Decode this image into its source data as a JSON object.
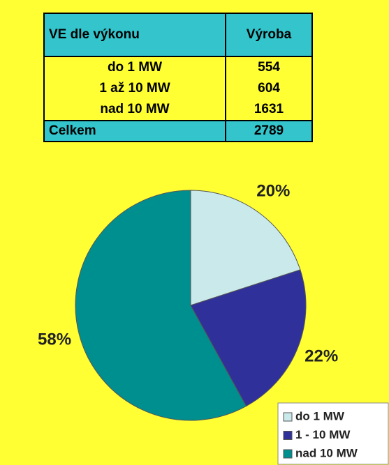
{
  "table": {
    "header": [
      "VE dle výkonu",
      "Výroba"
    ],
    "rows": [
      [
        "do 1 MW",
        554
      ],
      [
        "1 až 10 MW",
        604
      ],
      [
        "nad 10 MW",
        1631
      ]
    ],
    "footer": [
      "Celkem",
      2789
    ]
  },
  "chart_data": {
    "type": "pie",
    "categories": [
      "do 1 MW",
      "1 - 10 MW",
      "nad 10 MW"
    ],
    "values": [
      20,
      22,
      58
    ],
    "value_labels": [
      "20%",
      "22%",
      "58%"
    ],
    "colors": [
      "#c9e9ea",
      "#30309a",
      "#008f8f"
    ]
  }
}
